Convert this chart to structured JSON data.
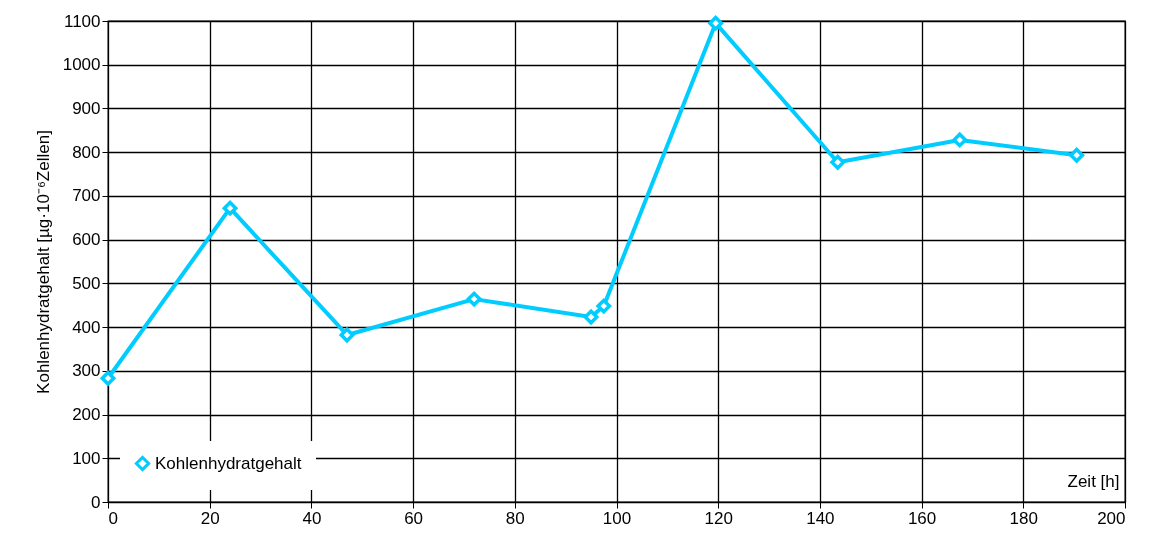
{
  "chart_data": {
    "type": "line",
    "xlabel": "Zeit [h]",
    "ylabel": "Kohlenhydratgehalt [µg·10⁻⁶Zellen]",
    "x": [
      0,
      24,
      47,
      72,
      95,
      97.5,
      119.5,
      143.5,
      167.5,
      190.5
    ],
    "series": [
      {
        "name": "Kohlenhydratgehalt",
        "color": "#00ccff",
        "values": [
          283,
          672,
          382,
          464,
          423,
          448,
          1095,
          777,
          828,
          793
        ]
      }
    ],
    "xlim": [
      0,
      200
    ],
    "xticks": [
      0,
      20,
      40,
      60,
      80,
      100,
      120,
      140,
      160,
      180,
      200
    ],
    "ylim": [
      0,
      1100
    ],
    "yticks": [
      0,
      100,
      200,
      300,
      400,
      500,
      600,
      700,
      800,
      900,
      1000,
      1100
    ],
    "grid": true,
    "legend": "bottom left",
    "marker": "diamond",
    "line_style": "solid"
  }
}
